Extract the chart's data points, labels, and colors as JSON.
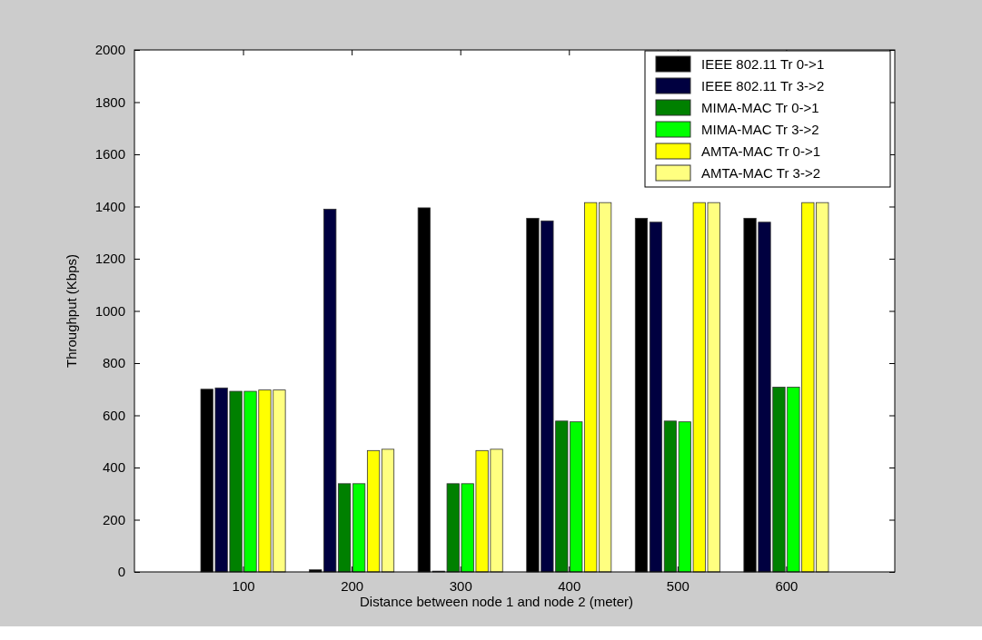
{
  "chart_data": {
    "type": "bar",
    "xlabel": "Distance between node 1 and node 2 (meter)",
    "ylabel": "Throughput (Kbps)",
    "categories": [
      "100",
      "200",
      "300",
      "400",
      "500",
      "600"
    ],
    "series": [
      {
        "name": "IEEE 802.11 Tr 0->1",
        "color": "#000000",
        "values": [
          700,
          8,
          1395,
          1355,
          1355,
          1355
        ]
      },
      {
        "name": "IEEE 802.11 Tr 3->2",
        "color": "#000040",
        "values": [
          705,
          1390,
          3,
          1345,
          1340,
          1340
        ]
      },
      {
        "name": "MIMA-MAC Tr 0->1",
        "color": "#008000",
        "values": [
          692,
          338,
          338,
          578,
          578,
          708
        ]
      },
      {
        "name": "MIMA-MAC Tr 3->2",
        "color": "#00ff00",
        "values": [
          692,
          338,
          338,
          575,
          575,
          708
        ]
      },
      {
        "name": "AMTA-MAC Tr 0->1",
        "color": "#ffff00",
        "values": [
          697,
          465,
          465,
          1415,
          1415,
          1415
        ]
      },
      {
        "name": "AMTA-MAC Tr 3->2",
        "color": "#ffff80",
        "values": [
          697,
          470,
          470,
          1415,
          1415,
          1415
        ]
      }
    ],
    "ylim": [
      0,
      2000
    ],
    "yticks": [
      0,
      200,
      400,
      600,
      800,
      1000,
      1200,
      1400,
      1600,
      1800,
      2000
    ],
    "legend": "top right"
  }
}
